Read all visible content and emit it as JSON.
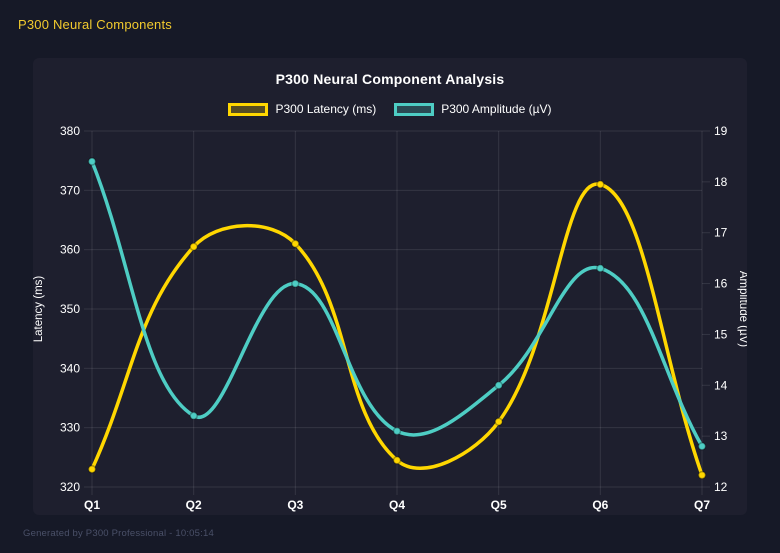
{
  "header": {
    "title": "P300 Neural Components"
  },
  "footer": {
    "text": "Generated by P300 Professional - 10:05:14"
  },
  "colors": {
    "page_bg": "#161927",
    "card_bg": "#1e1f2e",
    "grid": "rgba(255,255,255,0.10)",
    "tick_text": "#ffffff",
    "accent": "#f2cb2e",
    "footer_text": "#4a5068",
    "latency_line": "#ffd700",
    "amplitude_line": "#4ecdc4"
  },
  "chart_data": {
    "type": "line",
    "title": "P300 Neural Component Analysis",
    "categories": [
      "Q1",
      "Q2",
      "Q3",
      "Q4",
      "Q5",
      "Q6",
      "Q7"
    ],
    "series": [
      {
        "name": "P300 Latency (ms)",
        "axis": "left",
        "color": "#ffd700",
        "values": [
          323,
          360.5,
          361,
          324.5,
          331,
          371,
          322
        ]
      },
      {
        "name": "P300 Amplitude (µV)",
        "axis": "right",
        "color": "#4ecdc4",
        "values": [
          18.4,
          13.4,
          16,
          13.1,
          14,
          16.3,
          12.8
        ]
      }
    ],
    "axes": {
      "left": {
        "label": "Latency (ms)",
        "min": 320,
        "max": 380,
        "step": 10
      },
      "right": {
        "label": "Amplitude (µV)",
        "min": 12,
        "max": 19,
        "step": 1
      }
    },
    "grid": true,
    "legend_position": "top",
    "smoothing": 0.4
  }
}
